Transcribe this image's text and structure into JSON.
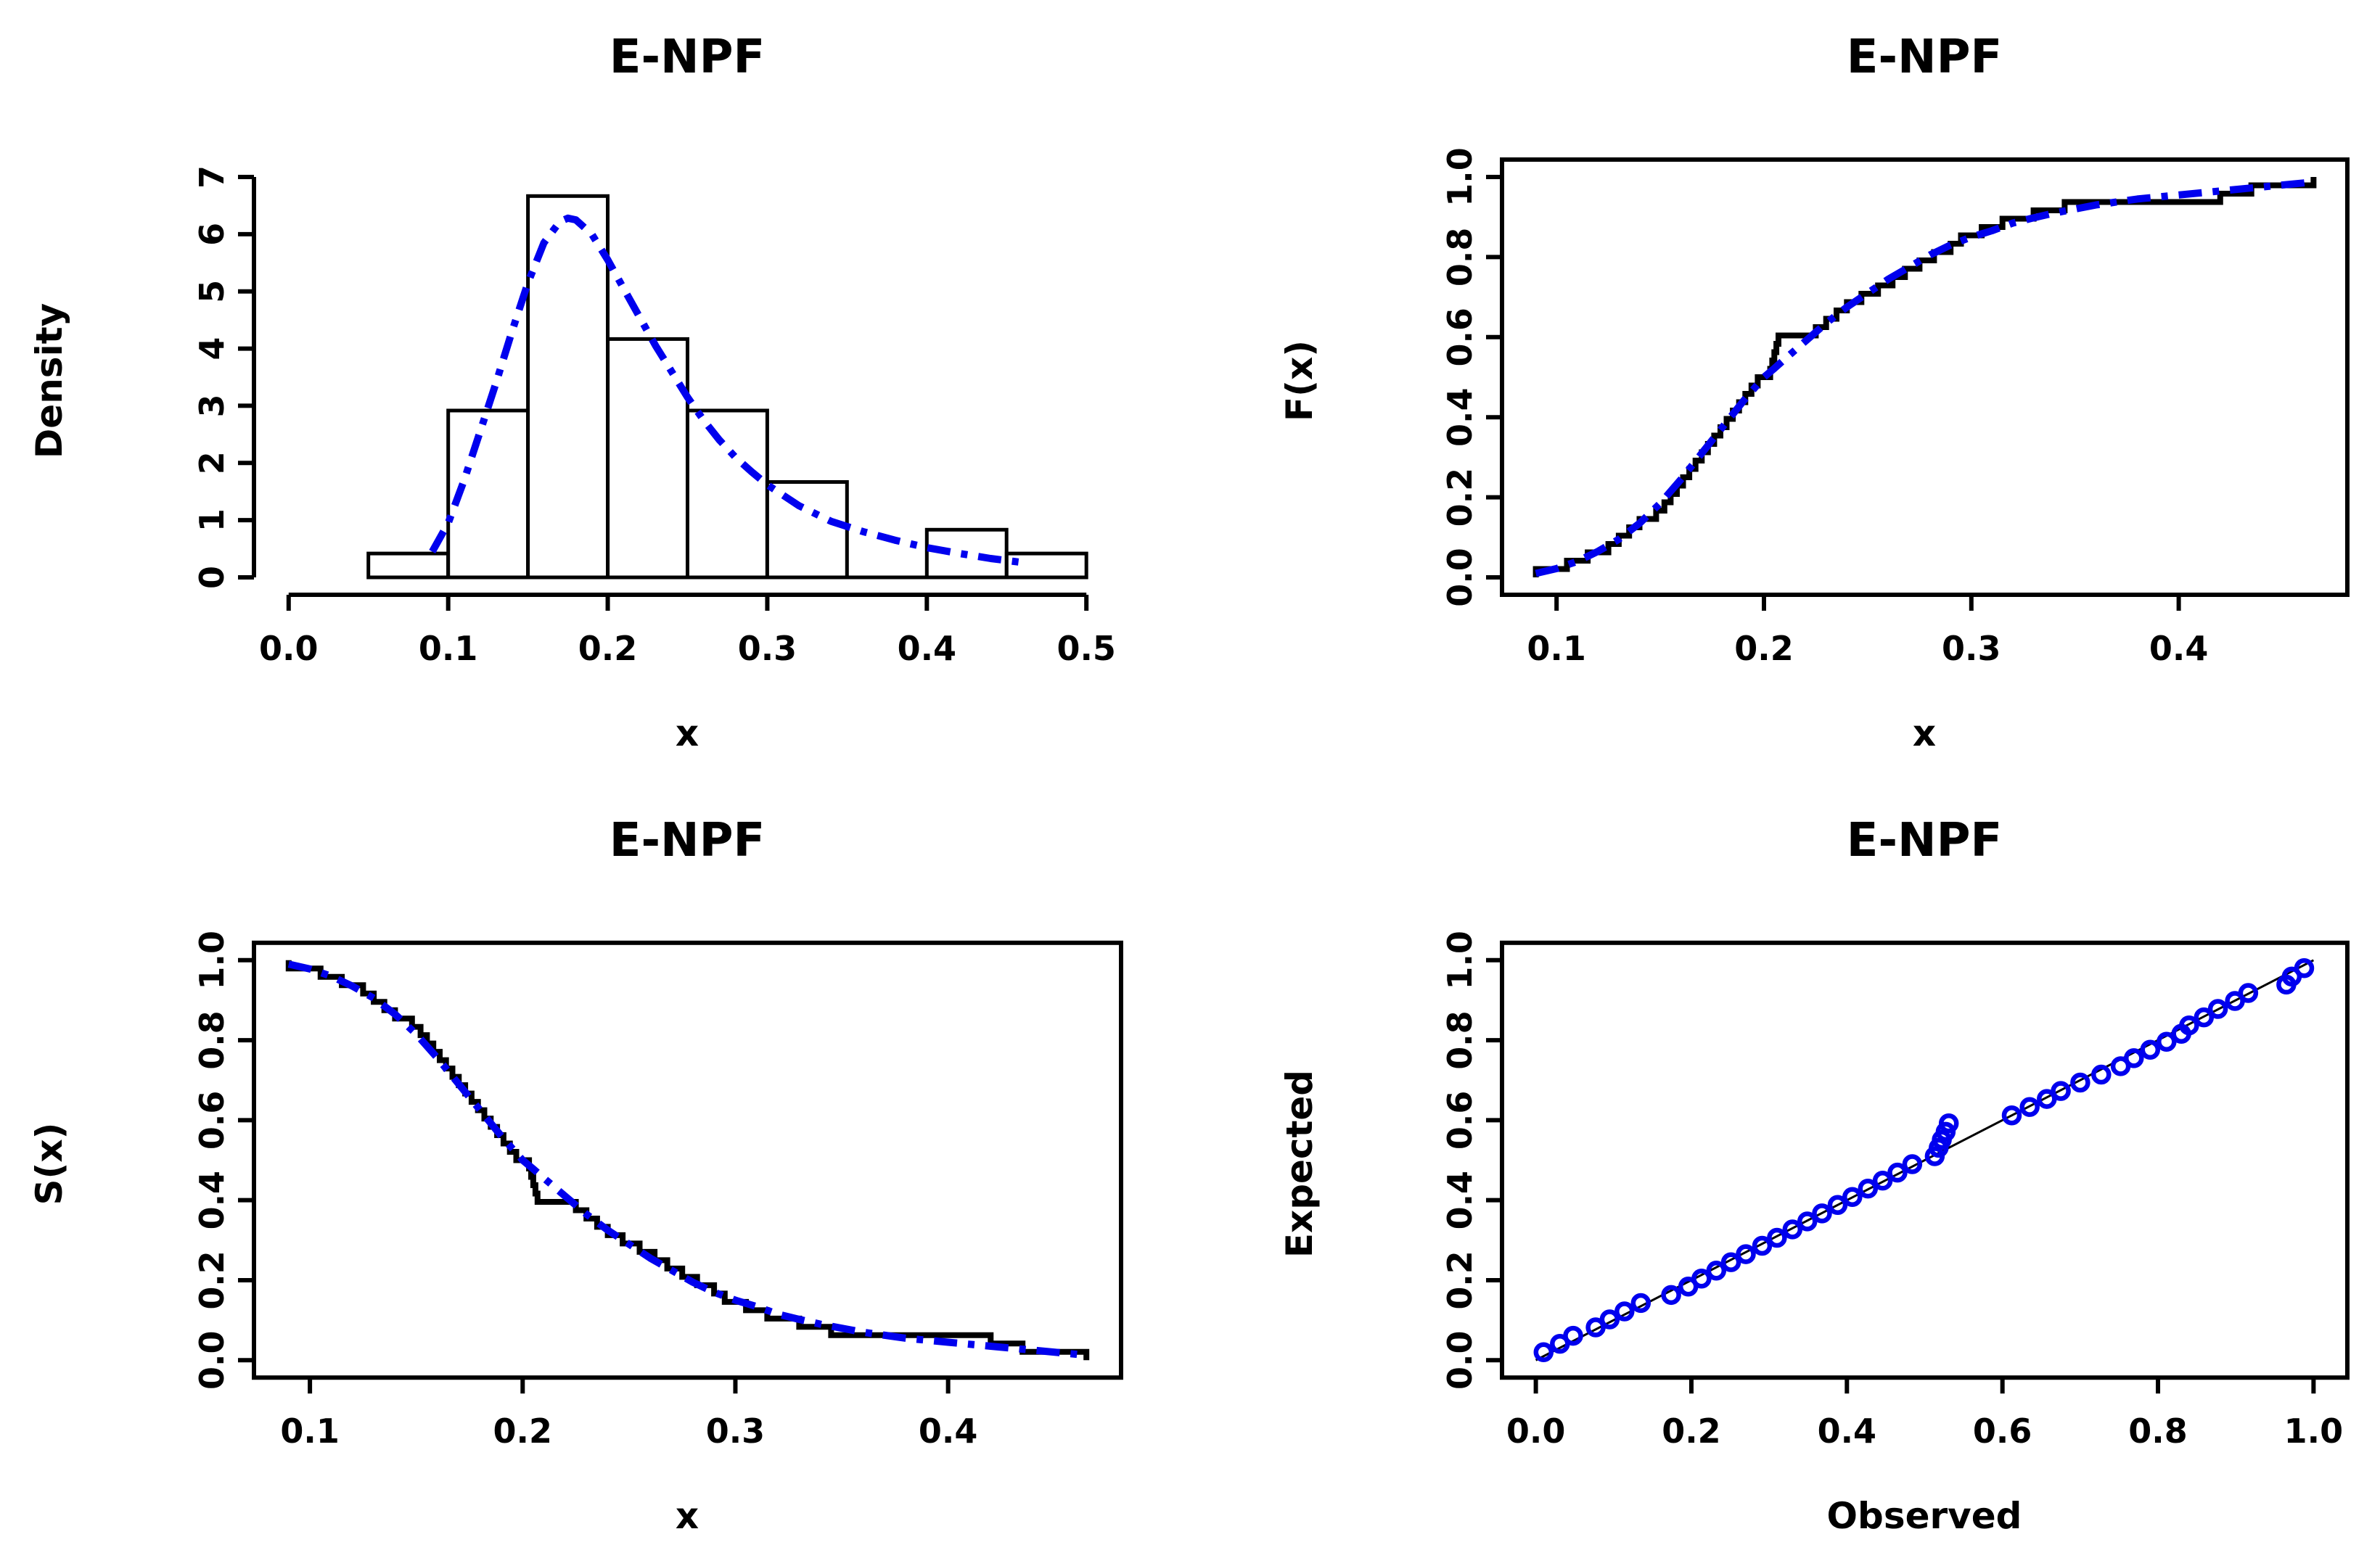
{
  "page": {
    "background": "#ffffff"
  },
  "colors": {
    "fitted_curve_blue": "#0000ee",
    "empirical_black": "#000000",
    "axis_black": "#000000",
    "text_black": "#000000",
    "bar_fill_white": "#ffffff"
  },
  "sample_size": 48,
  "chart_data": [
    {
      "type": "bar",
      "subtype": "histogram-with-fitted-density",
      "title": "E-NPF",
      "xlabel": "x",
      "ylabel": "Density",
      "xlim": [
        0,
        0.5
      ],
      "ylim": [
        0,
        7
      ],
      "grid": false,
      "legend": "none",
      "xticks": {
        "values": [
          0,
          0.1,
          0.2,
          0.3,
          0.4,
          0.5
        ],
        "labels": [
          "0.0",
          "0.1",
          "0.2",
          "0.3",
          "0.4",
          "0.5"
        ]
      },
      "yticks": {
        "values": [
          0,
          1,
          2,
          3,
          4,
          5,
          6,
          7
        ],
        "labels": [
          "0",
          "1",
          "2",
          "3",
          "4",
          "5",
          "6",
          "7"
        ]
      },
      "bins": {
        "edges": [
          0.05,
          0.1,
          0.15,
          0.2,
          0.25,
          0.3,
          0.35,
          0.4,
          0.45,
          0.5
        ],
        "densities": [
          0.417,
          2.917,
          6.667,
          4.167,
          2.917,
          1.667,
          0,
          0.833,
          0.417
        ]
      },
      "curve": {
        "x": [
          0.09,
          0.1,
          0.11,
          0.12,
          0.13,
          0.14,
          0.15,
          0.16,
          0.17,
          0.175,
          0.18,
          0.19,
          0.2,
          0.21,
          0.22,
          0.23,
          0.24,
          0.25,
          0.26,
          0.27,
          0.28,
          0.29,
          0.3,
          0.32,
          0.34,
          0.36,
          0.38,
          0.4,
          0.42,
          0.44,
          0.46
        ],
        "y": [
          0.45,
          0.95,
          1.7,
          2.55,
          3.4,
          4.3,
          5.15,
          5.85,
          6.22,
          6.28,
          6.25,
          6.0,
          5.55,
          5.05,
          4.55,
          4.05,
          3.6,
          3.15,
          2.75,
          2.4,
          2.1,
          1.85,
          1.62,
          1.25,
          0.98,
          0.8,
          0.65,
          0.52,
          0.42,
          0.33,
          0.26
        ]
      }
    },
    {
      "type": "line",
      "subtype": "ecdf-step-with-fitted-cdf",
      "title": "E-NPF",
      "xlabel": "x",
      "ylabel": "F(x)",
      "xlim": [
        0.09,
        0.465
      ],
      "ylim": [
        0,
        1
      ],
      "grid": false,
      "legend": "none",
      "step_direction": "up",
      "xticks": {
        "values": [
          0.1,
          0.2,
          0.3,
          0.4
        ],
        "labels": [
          "0.1",
          "0.2",
          "0.3",
          "0.4"
        ]
      },
      "yticks": {
        "values": [
          0,
          0.2,
          0.4,
          0.6,
          0.8,
          1
        ],
        "labels": [
          "0.0",
          "0.2",
          "0.4",
          "0.6",
          "0.8",
          "1.0"
        ]
      },
      "step_x": [
        0.09,
        0.105,
        0.115,
        0.125,
        0.13,
        0.135,
        0.14,
        0.148,
        0.152,
        0.155,
        0.158,
        0.161,
        0.164,
        0.167,
        0.17,
        0.173,
        0.176,
        0.179,
        0.182,
        0.185,
        0.188,
        0.191,
        0.194,
        0.197,
        0.203,
        0.204,
        0.205,
        0.206,
        0.207,
        0.225,
        0.23,
        0.235,
        0.24,
        0.247,
        0.255,
        0.262,
        0.268,
        0.275,
        0.282,
        0.29,
        0.295,
        0.305,
        0.315,
        0.33,
        0.345,
        0.42,
        0.435,
        0.465
      ],
      "curve": {
        "x": [
          0.09,
          0.1,
          0.11,
          0.12,
          0.13,
          0.14,
          0.15,
          0.16,
          0.17,
          0.18,
          0.19,
          0.2,
          0.205,
          0.21,
          0.22,
          0.23,
          0.24,
          0.25,
          0.26,
          0.27,
          0.28,
          0.29,
          0.3,
          0.31,
          0.32,
          0.33,
          0.34,
          0.36,
          0.38,
          0.4,
          0.42,
          0.44,
          0.46,
          0.465
        ],
        "y": [
          0.01,
          0.022,
          0.04,
          0.065,
          0.095,
          0.135,
          0.185,
          0.245,
          0.31,
          0.375,
          0.44,
          0.5,
          0.522,
          0.545,
          0.59,
          0.635,
          0.675,
          0.71,
          0.745,
          0.775,
          0.805,
          0.83,
          0.85,
          0.866,
          0.885,
          0.898,
          0.91,
          0.93,
          0.945,
          0.955,
          0.965,
          0.975,
          0.985,
          0.988
        ]
      }
    },
    {
      "type": "line",
      "subtype": "survival-step-with-fitted-survival",
      "title": "E-NPF",
      "xlabel": "x",
      "ylabel": "S(x)",
      "xlim": [
        0.09,
        0.465
      ],
      "ylim": [
        0,
        1
      ],
      "grid": false,
      "legend": "none",
      "step_direction": "down",
      "xticks": {
        "values": [
          0.1,
          0.2,
          0.3,
          0.4
        ],
        "labels": [
          "0.1",
          "0.2",
          "0.3",
          "0.4"
        ]
      },
      "yticks": {
        "values": [
          0,
          0.2,
          0.4,
          0.6,
          0.8,
          1
        ],
        "labels": [
          "0.0",
          "0.2",
          "0.4",
          "0.6",
          "0.8",
          "1.0"
        ]
      },
      "step_x": [
        0.09,
        0.105,
        0.115,
        0.125,
        0.13,
        0.135,
        0.14,
        0.148,
        0.152,
        0.155,
        0.158,
        0.161,
        0.164,
        0.167,
        0.17,
        0.173,
        0.176,
        0.179,
        0.182,
        0.185,
        0.188,
        0.191,
        0.194,
        0.197,
        0.203,
        0.204,
        0.205,
        0.206,
        0.207,
        0.225,
        0.23,
        0.235,
        0.24,
        0.247,
        0.255,
        0.262,
        0.268,
        0.275,
        0.282,
        0.29,
        0.295,
        0.305,
        0.315,
        0.33,
        0.345,
        0.42,
        0.435,
        0.465
      ],
      "curve": {
        "x": [
          0.09,
          0.1,
          0.11,
          0.12,
          0.13,
          0.14,
          0.15,
          0.16,
          0.17,
          0.18,
          0.19,
          0.2,
          0.205,
          0.21,
          0.22,
          0.23,
          0.24,
          0.25,
          0.26,
          0.27,
          0.28,
          0.29,
          0.3,
          0.31,
          0.32,
          0.33,
          0.34,
          0.36,
          0.38,
          0.4,
          0.42,
          0.44,
          0.46,
          0.465
        ],
        "y": [
          0.99,
          0.978,
          0.96,
          0.935,
          0.905,
          0.865,
          0.815,
          0.755,
          0.69,
          0.625,
          0.56,
          0.5,
          0.478,
          0.455,
          0.41,
          0.365,
          0.325,
          0.29,
          0.255,
          0.225,
          0.195,
          0.17,
          0.15,
          0.134,
          0.115,
          0.102,
          0.09,
          0.07,
          0.055,
          0.045,
          0.035,
          0.025,
          0.015,
          0.012
        ]
      }
    },
    {
      "type": "scatter",
      "subtype": "pp-plot",
      "title": "E-NPF",
      "xlabel": "Observed",
      "ylabel": "Expected",
      "xlim": [
        0,
        1
      ],
      "ylim": [
        0,
        1
      ],
      "grid": false,
      "legend": "none",
      "xticks": {
        "values": [
          0,
          0.2,
          0.4,
          0.6,
          0.8,
          1
        ],
        "labels": [
          "0.0",
          "0.2",
          "0.4",
          "0.6",
          "0.8",
          "1.0"
        ]
      },
      "yticks": {
        "values": [
          0,
          0.2,
          0.4,
          0.6,
          0.8,
          1
        ],
        "labels": [
          "0.0",
          "0.2",
          "0.4",
          "0.6",
          "0.8",
          "1.0"
        ]
      },
      "refline": {
        "x": [
          0,
          1
        ],
        "y": [
          0,
          1
        ]
      },
      "points": {
        "observed": [
          0.01,
          0.031,
          0.048,
          0.077,
          0.095,
          0.114,
          0.135,
          0.174,
          0.196,
          0.213,
          0.232,
          0.251,
          0.27,
          0.291,
          0.31,
          0.33,
          0.349,
          0.368,
          0.388,
          0.407,
          0.427,
          0.446,
          0.465,
          0.484,
          0.513,
          0.518,
          0.522,
          0.527,
          0.531,
          0.612,
          0.635,
          0.657,
          0.675,
          0.7,
          0.727,
          0.752,
          0.769,
          0.79,
          0.811,
          0.83,
          0.84,
          0.859,
          0.877,
          0.899,
          0.916,
          0.965,
          0.972,
          0.988
        ],
        "expected": [
          0.02,
          0.041,
          0.061,
          0.082,
          0.102,
          0.122,
          0.143,
          0.163,
          0.184,
          0.204,
          0.224,
          0.245,
          0.265,
          0.286,
          0.306,
          0.327,
          0.347,
          0.367,
          0.388,
          0.408,
          0.429,
          0.449,
          0.469,
          0.49,
          0.51,
          0.531,
          0.551,
          0.571,
          0.592,
          0.612,
          0.633,
          0.653,
          0.673,
          0.694,
          0.714,
          0.735,
          0.755,
          0.776,
          0.796,
          0.816,
          0.837,
          0.857,
          0.878,
          0.898,
          0.918,
          0.939,
          0.959,
          0.98
        ]
      }
    }
  ]
}
